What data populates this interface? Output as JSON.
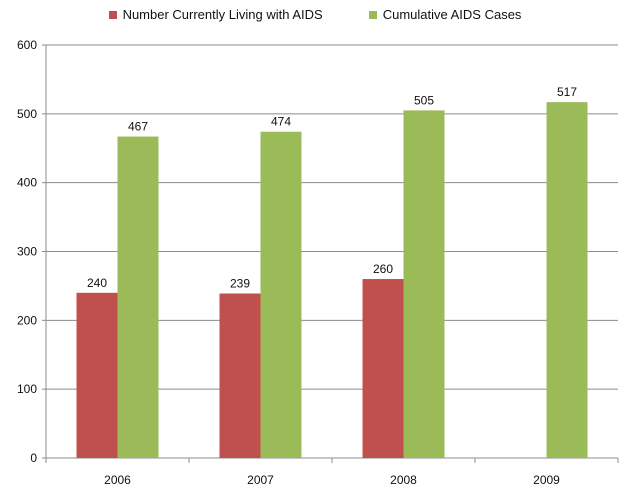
{
  "chart_data": {
    "type": "bar",
    "categories": [
      "2006",
      "2007",
      "2008",
      "2009"
    ],
    "series": [
      {
        "name": "Number Currently Living with AIDS",
        "color": "#C0504D",
        "values": [
          240,
          239,
          260,
          null
        ]
      },
      {
        "name": "Cumulative AIDS Cases",
        "color": "#9BBB59",
        "values": [
          467,
          474,
          505,
          517
        ]
      }
    ],
    "title": "",
    "xlabel": "",
    "ylabel": "",
    "ylim": [
      0,
      600
    ],
    "yticks": [
      0,
      100,
      200,
      300,
      400,
      500,
      600
    ],
    "grid": true,
    "legend_position": "top"
  }
}
